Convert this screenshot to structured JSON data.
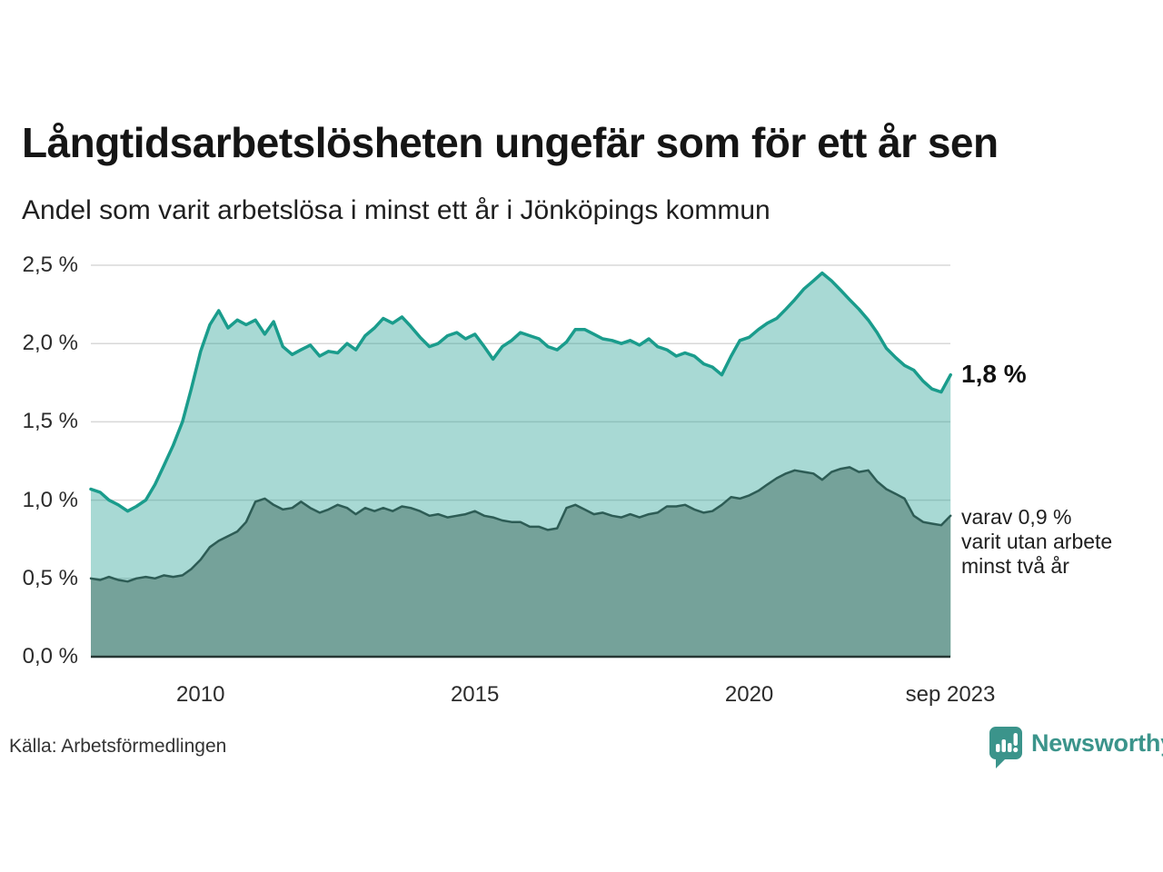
{
  "header": {
    "title": "Långtidsarbetslösheten ungefär som för ett år sen",
    "subtitle": "Andel som varit arbetslösa i minst ett år i Jönköpings kommun"
  },
  "footer": {
    "source_label": "Källa: Arbetsförmedlingen",
    "brand_name": "Newsworthy",
    "brand_color": "#3b948b"
  },
  "chart_data": {
    "type": "area",
    "title": "Långtidsarbetslösheten ungefär som för ett år sen",
    "subtitle": "Andel som varit arbetslösa i minst ett år i Jönköpings kommun",
    "xlim": [
      2008,
      2023.667
    ],
    "ylim": [
      0,
      2.5
    ],
    "grid": "horizontal",
    "legend_position": "none",
    "colors": {
      "gridline": "#d8d8d8",
      "baseline": "#263734",
      "total_line": "#1a9c8c",
      "total_fill": "rgba(26,156,141,0.38)",
      "two_year_line": "#2d5c55",
      "two_year_fill": "#75a29a"
    },
    "y_ticks": [
      {
        "value": 0.0,
        "label": "0,0 %"
      },
      {
        "value": 0.5,
        "label": "0,5 %"
      },
      {
        "value": 1.0,
        "label": "1,0 %"
      },
      {
        "value": 1.5,
        "label": "1,5 %"
      },
      {
        "value": 2.0,
        "label": "2,0 %"
      },
      {
        "value": 2.5,
        "label": "2,5 %"
      }
    ],
    "x_ticks": [
      {
        "value": 2010,
        "label": "2010"
      },
      {
        "value": 2015,
        "label": "2015"
      },
      {
        "value": 2020,
        "label": "2020"
      },
      {
        "value": 2023.667,
        "label": "sep 2023"
      }
    ],
    "x": [
      2008.0,
      2008.17,
      2008.33,
      2008.5,
      2008.67,
      2008.83,
      2009.0,
      2009.17,
      2009.33,
      2009.5,
      2009.67,
      2009.83,
      2010.0,
      2010.17,
      2010.33,
      2010.5,
      2010.67,
      2010.83,
      2011.0,
      2011.17,
      2011.33,
      2011.5,
      2011.67,
      2011.83,
      2012.0,
      2012.17,
      2012.33,
      2012.5,
      2012.67,
      2012.83,
      2013.0,
      2013.17,
      2013.33,
      2013.5,
      2013.67,
      2013.83,
      2014.0,
      2014.17,
      2014.33,
      2014.5,
      2014.67,
      2014.83,
      2015.0,
      2015.17,
      2015.33,
      2015.5,
      2015.67,
      2015.83,
      2016.0,
      2016.17,
      2016.33,
      2016.5,
      2016.67,
      2016.83,
      2017.0,
      2017.17,
      2017.33,
      2017.5,
      2017.67,
      2017.83,
      2018.0,
      2018.17,
      2018.33,
      2018.5,
      2018.67,
      2018.83,
      2019.0,
      2019.17,
      2019.33,
      2019.5,
      2019.67,
      2019.83,
      2020.0,
      2020.17,
      2020.33,
      2020.5,
      2020.67,
      2020.83,
      2021.0,
      2021.17,
      2021.33,
      2021.5,
      2021.67,
      2021.83,
      2022.0,
      2022.17,
      2022.33,
      2022.5,
      2022.67,
      2022.83,
      2023.0,
      2023.17,
      2023.33,
      2023.5,
      2023.67
    ],
    "series": [
      {
        "id": "arbetslosa-minst-ett-ar",
        "values": [
          1.07,
          1.05,
          1.0,
          0.97,
          0.93,
          0.96,
          1.0,
          1.1,
          1.22,
          1.35,
          1.5,
          1.71,
          1.95,
          2.12,
          2.21,
          2.1,
          2.15,
          2.12,
          2.15,
          2.06,
          2.14,
          1.98,
          1.93,
          1.96,
          1.99,
          1.92,
          1.95,
          1.94,
          2.0,
          1.96,
          2.05,
          2.1,
          2.16,
          2.13,
          2.17,
          2.11,
          2.04,
          1.98,
          2.0,
          2.05,
          2.07,
          2.03,
          2.06,
          1.98,
          1.9,
          1.98,
          2.02,
          2.07,
          2.05,
          2.03,
          1.98,
          1.96,
          2.01,
          2.09,
          2.09,
          2.06,
          2.03,
          2.02,
          2.0,
          2.02,
          1.99,
          2.03,
          1.98,
          1.96,
          1.92,
          1.94,
          1.92,
          1.87,
          1.85,
          1.8,
          1.92,
          2.02,
          2.04,
          2.09,
          2.13,
          2.16,
          2.22,
          2.28,
          2.35,
          2.4,
          2.45,
          2.4,
          2.34,
          2.28,
          2.22,
          2.15,
          2.07,
          1.97,
          1.91,
          1.86,
          1.83,
          1.76,
          1.71,
          1.69,
          1.8
        ]
      },
      {
        "id": "arbetslosa-minst-tva-ar",
        "values": [
          0.5,
          0.49,
          0.51,
          0.49,
          0.48,
          0.5,
          0.51,
          0.5,
          0.52,
          0.51,
          0.52,
          0.56,
          0.62,
          0.7,
          0.74,
          0.77,
          0.8,
          0.86,
          0.99,
          1.01,
          0.97,
          0.94,
          0.95,
          0.99,
          0.95,
          0.92,
          0.94,
          0.97,
          0.95,
          0.91,
          0.95,
          0.93,
          0.95,
          0.93,
          0.96,
          0.95,
          0.93,
          0.9,
          0.91,
          0.89,
          0.9,
          0.91,
          0.93,
          0.9,
          0.89,
          0.87,
          0.86,
          0.86,
          0.83,
          0.83,
          0.81,
          0.82,
          0.95,
          0.97,
          0.94,
          0.91,
          0.92,
          0.9,
          0.89,
          0.91,
          0.89,
          0.91,
          0.92,
          0.96,
          0.96,
          0.97,
          0.94,
          0.92,
          0.93,
          0.97,
          1.02,
          1.01,
          1.03,
          1.06,
          1.1,
          1.14,
          1.17,
          1.19,
          1.18,
          1.17,
          1.13,
          1.18,
          1.2,
          1.21,
          1.18,
          1.19,
          1.12,
          1.07,
          1.04,
          1.01,
          0.9,
          0.86,
          0.85,
          0.84,
          0.9
        ]
      }
    ],
    "annotations": [
      {
        "id": "latest-total",
        "text": "1,8 %",
        "value": 1.8,
        "style": "big"
      },
      {
        "id": "latest-two-year",
        "lines": [
          "varav 0,9 %",
          "varit utan arbete",
          "minst två år"
        ],
        "value": 0.9,
        "style": "small"
      }
    ]
  }
}
